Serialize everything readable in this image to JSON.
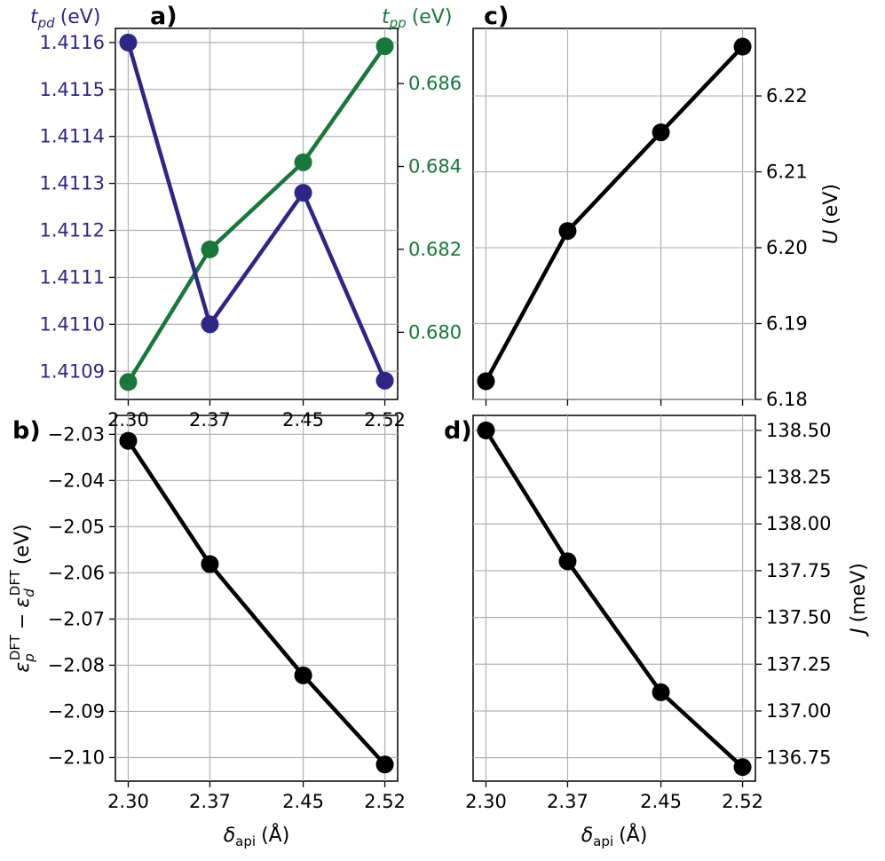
{
  "chart_data": [
    {
      "panel": "a)",
      "type": "line",
      "x": [
        2.3,
        2.37,
        2.45,
        2.52
      ],
      "xticks": [
        "2.30",
        "2.37",
        "2.45",
        "2.52"
      ],
      "xlim": [
        2.289,
        2.531
      ],
      "grid": true,
      "series": [
        {
          "name_label": "t",
          "name_sub": "pd",
          "name_unit": "(eV)",
          "axis": "left",
          "color": "#2e2586",
          "values": [
            1.4116,
            1.411,
            1.41128,
            1.41088
          ],
          "ylim": [
            1.41084,
            1.41163
          ],
          "yticks": [
            "1.4109",
            "1.4110",
            "1.4111",
            "1.4112",
            "1.4113",
            "1.4114",
            "1.4115",
            "1.4116"
          ],
          "ytick_values": [
            1.4109,
            1.411,
            1.4111,
            1.4112,
            1.4113,
            1.4114,
            1.4115,
            1.4116
          ]
        },
        {
          "name_label": "t",
          "name_sub": "pp",
          "name_unit": "(eV)",
          "axis": "right",
          "color": "#18773a",
          "values": [
            0.6788,
            0.682,
            0.6841,
            0.6869
          ],
          "ylim": [
            0.67838,
            0.68733
          ],
          "yticks": [
            "0.680",
            "0.682",
            "0.684",
            "0.686"
          ],
          "ytick_values": [
            0.68,
            0.682,
            0.684,
            0.686
          ]
        }
      ]
    },
    {
      "panel": "b)",
      "type": "line",
      "x": [
        2.3,
        2.37,
        2.45,
        2.52
      ],
      "xticks": [
        "2.30",
        "2.37",
        "2.45",
        "2.52"
      ],
      "xlim": [
        2.289,
        2.531
      ],
      "xlabel_main": "δ",
      "xlabel_sub": "api",
      "xlabel_unit": "(Å)",
      "ylabel_a": "ε",
      "ylabel_a_sub": "p",
      "ylabel_a_sup": "DFT",
      "ylabel_minus": "−",
      "ylabel_b": "ε",
      "ylabel_b_sub": "d",
      "ylabel_b_sup": "DFT",
      "ylabel_unit": "(eV)",
      "color": "#000000",
      "values": [
        -2.0314,
        -2.0581,
        -2.0822,
        -2.1015
      ],
      "ylim": [
        -2.1051,
        -2.0259
      ],
      "yticks": [
        "−2.10",
        "−2.09",
        "−2.08",
        "−2.07",
        "−2.06",
        "−2.05",
        "−2.04",
        "−2.03"
      ],
      "ytick_values": [
        -2.1,
        -2.09,
        -2.08,
        -2.07,
        -2.06,
        -2.05,
        -2.04,
        -2.03
      ],
      "grid": true
    },
    {
      "panel": "c)",
      "type": "line",
      "x": [
        2.3,
        2.37,
        2.45,
        2.52
      ],
      "xticks": [],
      "xlim": [
        2.289,
        2.531
      ],
      "ylabel_main": "U",
      "ylabel_unit": "(eV)",
      "color": "#000000",
      "values": [
        6.1824,
        6.2022,
        6.2152,
        6.2265
      ],
      "ylim": [
        6.18,
        6.2289
      ],
      "yticks": [
        "6.18",
        "6.19",
        "6.20",
        "6.21",
        "6.22"
      ],
      "ytick_values": [
        6.18,
        6.19,
        6.2,
        6.21,
        6.22
      ],
      "grid": true
    },
    {
      "panel": "d)",
      "type": "line",
      "x": [
        2.3,
        2.37,
        2.45,
        2.52
      ],
      "xticks": [
        "2.30",
        "2.37",
        "2.45",
        "2.52"
      ],
      "xlim": [
        2.289,
        2.531
      ],
      "xlabel_main": "δ",
      "xlabel_sub": "api",
      "xlabel_unit": "(Å)",
      "ylabel_main": "J",
      "ylabel_unit": "(meV)",
      "color": "#000000",
      "values": [
        138.5,
        137.8,
        137.1,
        136.7
      ],
      "ylim": [
        136.625,
        138.58
      ],
      "yticks": [
        "136.75",
        "137.00",
        "137.25",
        "137.50",
        "137.75",
        "138.00",
        "138.25",
        "138.50"
      ],
      "ytick_values": [
        136.75,
        137.0,
        137.25,
        137.5,
        137.75,
        138.0,
        138.25,
        138.5
      ],
      "grid": true
    }
  ]
}
